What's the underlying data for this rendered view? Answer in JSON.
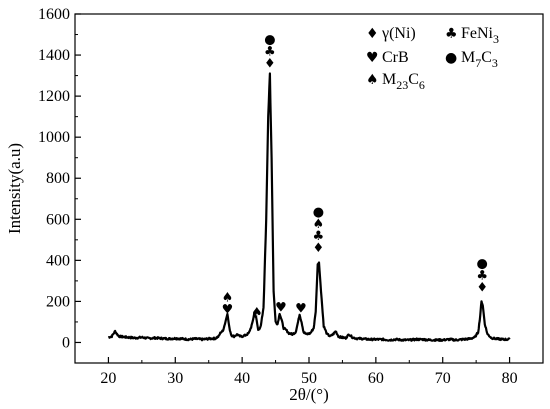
{
  "chart_data": {
    "type": "line",
    "title": "",
    "xlabel": "2θ/(°)",
    "ylabel": "Intensity(a.u)",
    "xlim": [
      15,
      85
    ],
    "ylim": [
      -100,
      1600
    ],
    "xticks": [
      "20",
      "30",
      "40",
      "50",
      "60",
      "70",
      "80"
    ],
    "yticks": [
      "0",
      "200",
      "400",
      "600",
      "800",
      "1000",
      "1200",
      "1400",
      "1600"
    ],
    "grid": false,
    "legend_position": "top-right",
    "line_color": "#000000",
    "series": [
      {
        "x": [
          20,
          20.5,
          21,
          21.3,
          21.6,
          22,
          23,
          24,
          25,
          26,
          27,
          28,
          29,
          30,
          31,
          32,
          33,
          34,
          35,
          36,
          36.5,
          36.8,
          37.1,
          37.5,
          37.8,
          38.1,
          38.4,
          38.8,
          39.3,
          39.6,
          40,
          40.5,
          41,
          41.5,
          41.8,
          42.1,
          42.4,
          42.8,
          43.2,
          43.6,
          43.9,
          44.15,
          44.4,
          44.7,
          45,
          45.3,
          45.6,
          45.9,
          46.2,
          46.6,
          47,
          47.5,
          48,
          48.3,
          48.6,
          48.9,
          49.2,
          49.6,
          50.2,
          50.7,
          51,
          51.3,
          51.5,
          51.8,
          52.2,
          52.7,
          53.2,
          53.6,
          54,
          54.4,
          54.8,
          55.5,
          56,
          56.5,
          57,
          58,
          59,
          60,
          61,
          62,
          63,
          64,
          65,
          66,
          67,
          68,
          69,
          70,
          71,
          72,
          73,
          74,
          74.8,
          75.3,
          75.6,
          75.8,
          76,
          76.3,
          76.7,
          77.3,
          78,
          79,
          80
        ],
        "y": [
          25,
          30,
          55,
          40,
          30,
          28,
          25,
          22,
          25,
          20,
          22,
          20,
          18,
          20,
          18,
          15,
          18,
          15,
          18,
          20,
          30,
          50,
          55,
          100,
          140,
          70,
          35,
          30,
          40,
          30,
          30,
          35,
          45,
          90,
          140,
          120,
          60,
          80,
          170,
          600,
          1100,
          1310,
          900,
          250,
          100,
          90,
          140,
          110,
          70,
          60,
          45,
          40,
          50,
          90,
          135,
          100,
          50,
          40,
          45,
          70,
          150,
          380,
          390,
          250,
          80,
          40,
          30,
          40,
          55,
          30,
          25,
          22,
          40,
          25,
          20,
          18,
          15,
          15,
          15,
          12,
          15,
          12,
          12,
          15,
          15,
          12,
          12,
          12,
          15,
          12,
          15,
          18,
          25,
          50,
          130,
          200,
          180,
          90,
          40,
          22,
          18,
          15,
          15
        ]
      }
    ],
    "peak_markers": [
      {
        "x": 37.8,
        "y": 225,
        "labels": [
          "♠",
          "♥"
        ]
      },
      {
        "x": 42.2,
        "y": 150,
        "labels": [
          "♠"
        ]
      },
      {
        "x": 44.15,
        "y": 1480,
        "labels": [
          "●",
          "♣",
          "♦"
        ]
      },
      {
        "x": 45.8,
        "y": 175,
        "labels": [
          "♥"
        ]
      },
      {
        "x": 48.8,
        "y": 170,
        "labels": [
          "♥"
        ]
      },
      {
        "x": 51.4,
        "y": 640,
        "labels": [
          "●",
          "♠",
          "♣",
          "♦"
        ]
      },
      {
        "x": 75.9,
        "y": 390,
        "labels": [
          "●",
          "♣",
          "♦"
        ]
      }
    ],
    "legend": [
      {
        "symbol": "♦",
        "text": "γ(Ni)"
      },
      {
        "symbol": "♣",
        "text": "FeNi",
        "sub": "3"
      },
      {
        "symbol": "♥",
        "text": "CrB"
      },
      {
        "symbol": "●",
        "text": "M",
        "sub": "7",
        "text2": "C",
        "sub2": "3"
      },
      {
        "symbol": "♠",
        "text": "M",
        "sub": "23",
        "text2": "C",
        "sub2": "6"
      }
    ]
  }
}
